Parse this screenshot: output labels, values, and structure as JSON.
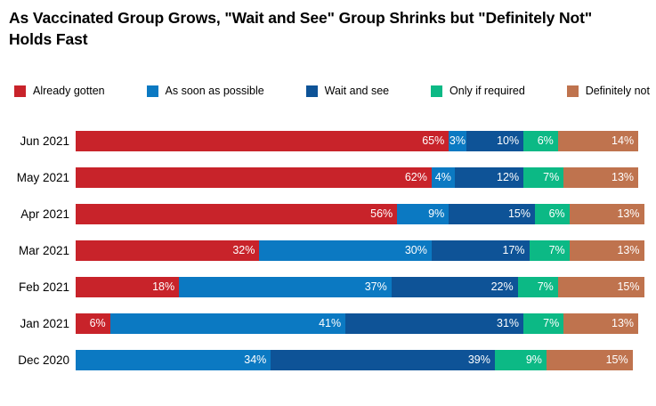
{
  "title": "As Vaccinated Group Grows, \"Wait and See\" Group Shrinks but \"Definitely Not\" Holds Fast",
  "chart_data": {
    "type": "bar",
    "orientation": "horizontal",
    "stacked": true,
    "unit": "%",
    "title": "As Vaccinated Group Grows, \"Wait and See\" Group Shrinks but \"Definitely Not\" Holds Fast",
    "categories": [
      "Jun 2021",
      "May 2021",
      "Apr 2021",
      "Mar 2021",
      "Feb 2021",
      "Jan 2021",
      "Dec 2020"
    ],
    "series": [
      {
        "name": "Already gotten",
        "color": "#C8232A",
        "values": [
          65,
          62,
          56,
          32,
          18,
          6,
          0
        ]
      },
      {
        "name": "As soon as possible",
        "color": "#0B79C2",
        "values": [
          3,
          4,
          9,
          30,
          37,
          41,
          34
        ]
      },
      {
        "name": "Wait and see",
        "color": "#0E5397",
        "values": [
          10,
          12,
          15,
          17,
          22,
          31,
          39
        ]
      },
      {
        "name": "Only if required",
        "color": "#0CB985",
        "values": [
          6,
          7,
          6,
          7,
          7,
          7,
          9
        ]
      },
      {
        "name": "Definitely not",
        "color": "#BF734E",
        "values": [
          14,
          13,
          13,
          13,
          15,
          13,
          15
        ]
      }
    ],
    "xlim": [
      0,
      100
    ],
    "grid": false,
    "legend_position": "top",
    "value_label_format": "{v}%",
    "value_label_color": "#ffffff"
  }
}
